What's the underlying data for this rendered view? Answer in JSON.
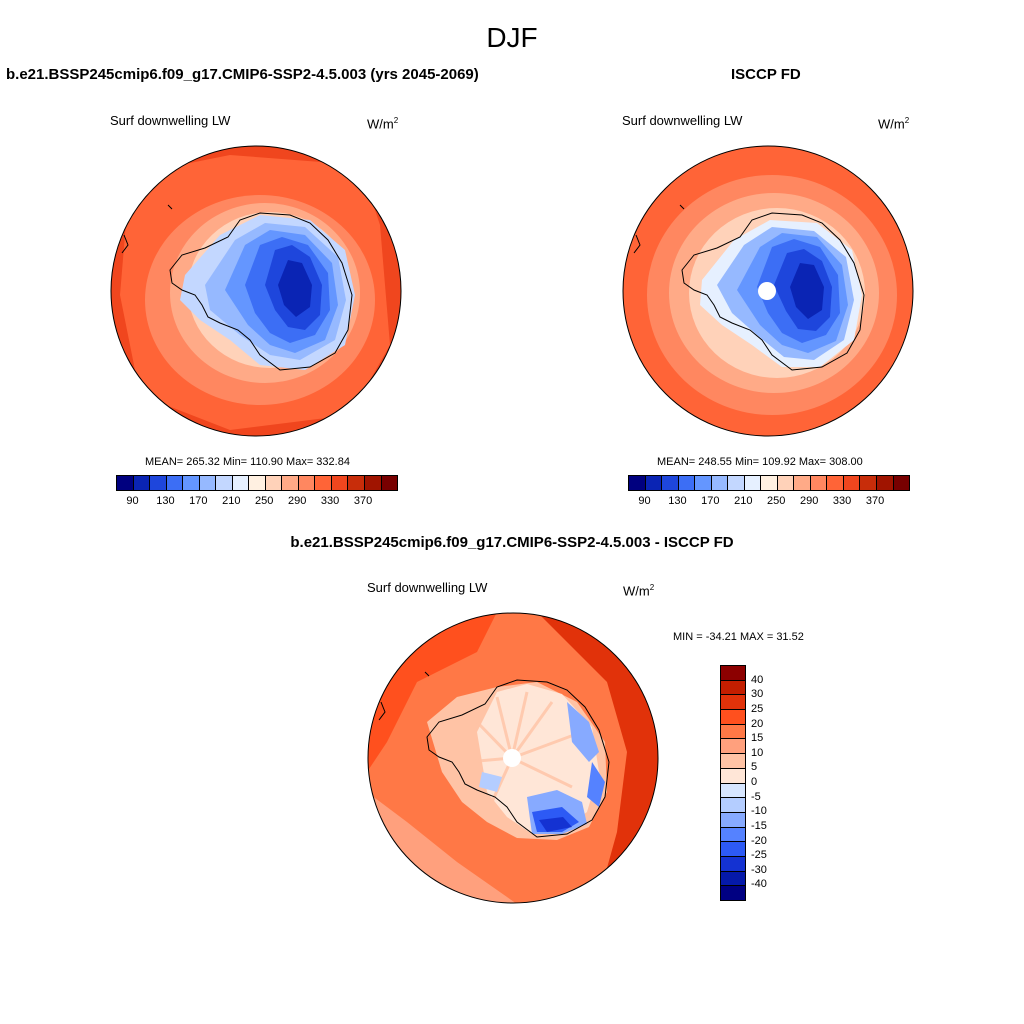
{
  "title": "DJF",
  "panels": {
    "left": {
      "title": "b.e21.BSSP245cmip6.f09_g17.CMIP6-SSP2-4.5.003 (yrs 2045-2069)",
      "variable": "Surf downwelling LW",
      "units_base": "W/m",
      "units_exp": "2",
      "stats": "MEAN= 265.32  Min= 110.90  Max= 332.84"
    },
    "right": {
      "title": "ISCCP FD",
      "variable": "Surf downwelling LW",
      "units_base": "W/m",
      "units_exp": "2",
      "stats": "MEAN= 248.55  Min= 109.92  Max= 308.00"
    },
    "diff": {
      "title": "b.e21.BSSP245cmip6.f09_g17.CMIP6-SSP2-4.5.003 - ISCCP FD",
      "variable": "Surf downwelling LW",
      "units_base": "W/m",
      "units_exp": "2",
      "stats": "MIN = -34.21 MAX =  31.52"
    }
  },
  "colorbar_abs": {
    "colors": [
      "#00007f",
      "#0a24b4",
      "#1e46dc",
      "#3c6ef5",
      "#6496ff",
      "#96b9ff",
      "#c3d7ff",
      "#e6f0ff",
      "#fff0e1",
      "#ffd2b9",
      "#ffaa87",
      "#ff8760",
      "#ff6437",
      "#f0461e",
      "#c82d0a",
      "#a01400",
      "#780000"
    ],
    "tick_labels": [
      "90",
      "130",
      "170",
      "210",
      "250",
      "290",
      "330",
      "370"
    ]
  },
  "colorbar_diff": {
    "colors": [
      "#8c0000",
      "#c31e00",
      "#e1320a",
      "#ff501e",
      "#ff7846",
      "#ffa07d",
      "#ffc3a5",
      "#ffe6d7",
      "#d7e6ff",
      "#b4cdff",
      "#87aaff",
      "#5582ff",
      "#2d5af5",
      "#1432d2",
      "#0519aa",
      "#000082"
    ],
    "tick_labels": [
      "40",
      "30",
      "25",
      "20",
      "15",
      "10",
      "5",
      "0",
      "-5",
      "-10",
      "-15",
      "-20",
      "-25",
      "-30",
      "-40"
    ]
  }
}
